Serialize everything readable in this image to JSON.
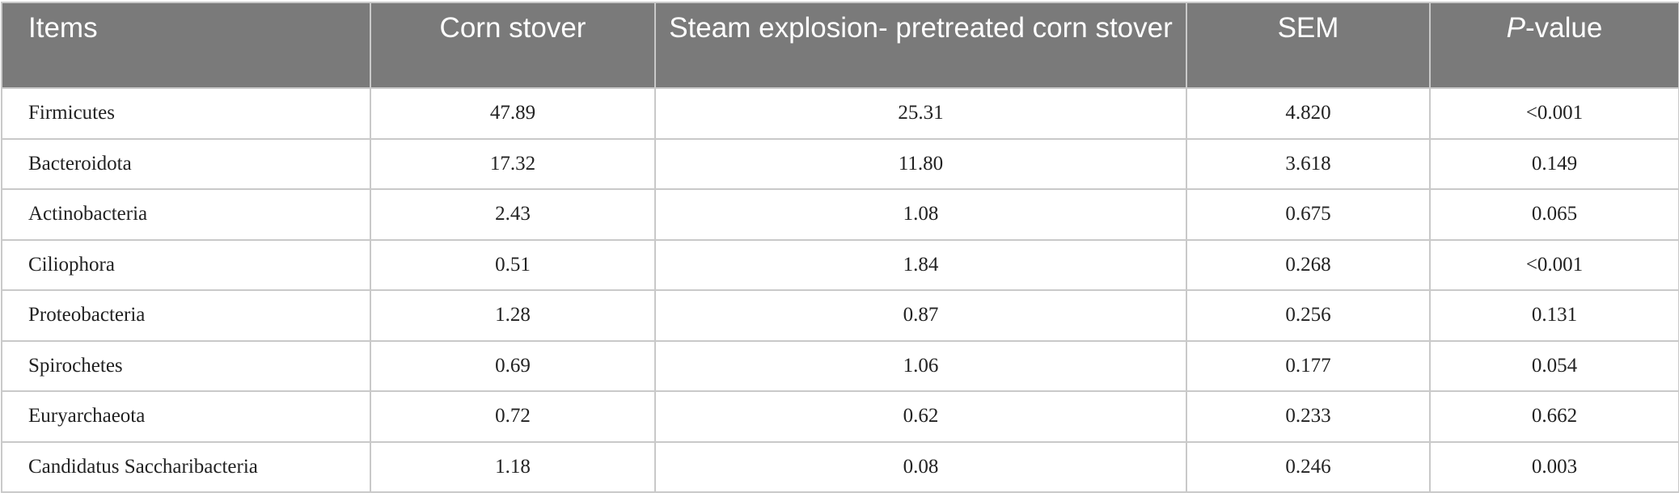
{
  "table": {
    "headers": [
      "Items",
      "Corn stover",
      "Steam explosion- pretreated corn stover",
      "SEM",
      "-value"
    ],
    "p_header_italic": "P",
    "rows": [
      {
        "item": "Firmicutes",
        "corn": "47.89",
        "steam": "25.31",
        "sem": "4.820",
        "p": "<0.001"
      },
      {
        "item": "Bacteroidota",
        "corn": "17.32",
        "steam": "11.80",
        "sem": "3.618",
        "p": "0.149"
      },
      {
        "item": "Actinobacteria",
        "corn": "2.43",
        "steam": "1.08",
        "sem": "0.675",
        "p": "0.065"
      },
      {
        "item": "Ciliophora",
        "corn": "0.51",
        "steam": "1.84",
        "sem": "0.268",
        "p": "<0.001"
      },
      {
        "item": "Proteobacteria",
        "corn": "1.28",
        "steam": "0.87",
        "sem": "0.256",
        "p": "0.131"
      },
      {
        "item": "Spirochetes",
        "corn": "0.69",
        "steam": "1.06",
        "sem": "0.177",
        "p": "0.054"
      },
      {
        "item": "Euryarchaeota",
        "corn": "0.72",
        "steam": "0.62",
        "sem": "0.233",
        "p": "0.662"
      },
      {
        "item": "Candidatus Saccharibacteria",
        "corn": "1.18",
        "steam": "0.08",
        "sem": "0.246",
        "p": "0.003"
      }
    ]
  },
  "colors": {
    "header_bg": "#7a7a7a",
    "header_text": "#ffffff",
    "grid": "#c9c9c9",
    "body_text": "#222222"
  }
}
